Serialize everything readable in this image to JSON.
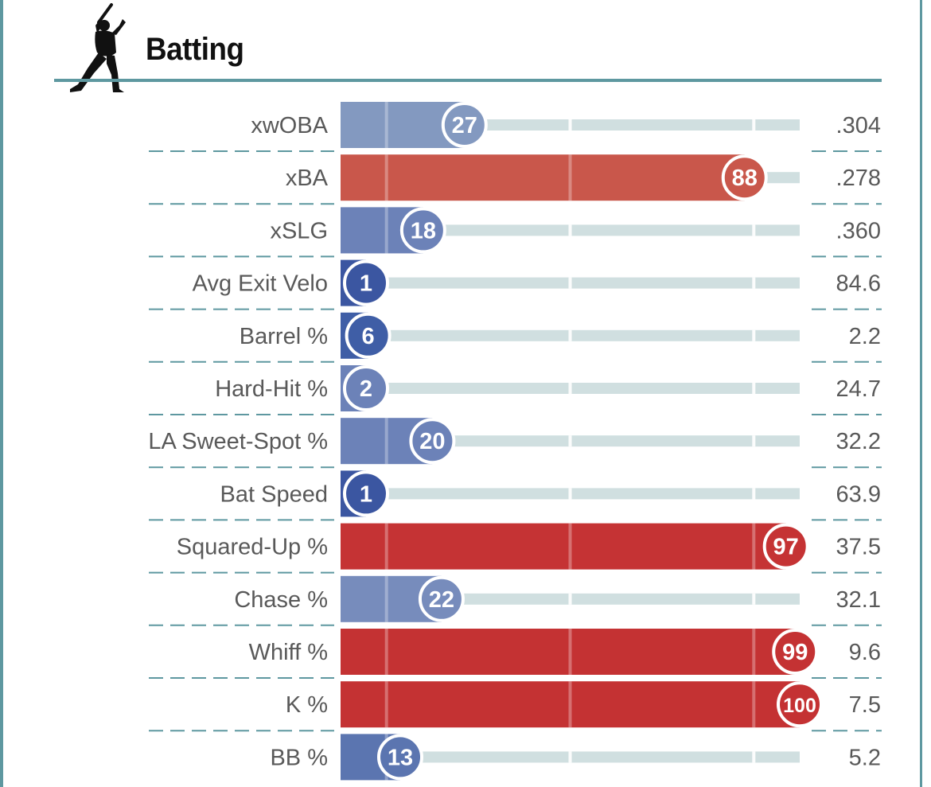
{
  "header": {
    "title": "Batting",
    "icon": "baseball-batter-icon"
  },
  "colors": {
    "frame": "#5e98a0",
    "track": "#d0dfe0",
    "divider": "#5e98a0",
    "text": "#595959",
    "scale": {
      "1": "#3b56a1",
      "6": "#3f5ea6",
      "13": "#5b75b0",
      "18": "#6c82b8",
      "20": "#6c82b8",
      "22": "#778cbc",
      "27": "#8399c0",
      "88": "#c9574b",
      "97": "#c53334",
      "99": "#c43233",
      "100": "#c43233"
    }
  },
  "chart_data": {
    "type": "bar",
    "orientation": "horizontal",
    "title": "Batting",
    "xlim": [
      0,
      100
    ],
    "value_kind": "percentile",
    "rows": [
      {
        "label": "xwOBA",
        "percentile": 27,
        "value": ".304"
      },
      {
        "label": "xBA",
        "percentile": 88,
        "value": ".278"
      },
      {
        "label": "xSLG",
        "percentile": 18,
        "value": ".360"
      },
      {
        "label": "Avg Exit Velo",
        "percentile": 1,
        "value": "84.6"
      },
      {
        "label": "Barrel %",
        "percentile": 6,
        "value": "2.2"
      },
      {
        "label": "Hard-Hit %",
        "percentile": 2,
        "value": "24.7"
      },
      {
        "label": "LA Sweet-Spot %",
        "percentile": 20,
        "value": "32.2"
      },
      {
        "label": "Bat Speed",
        "percentile": 1,
        "value": "63.9"
      },
      {
        "label": "Squared-Up %",
        "percentile": 97,
        "value": "37.5"
      },
      {
        "label": "Chase %",
        "percentile": 22,
        "value": "32.1"
      },
      {
        "label": "Whiff %",
        "percentile": 99,
        "value": "9.6"
      },
      {
        "label": "K %",
        "percentile": 100,
        "value": "7.5"
      },
      {
        "label": "BB %",
        "percentile": 13,
        "value": "5.2"
      }
    ],
    "reference_lines": [
      10,
      50,
      90
    ]
  }
}
